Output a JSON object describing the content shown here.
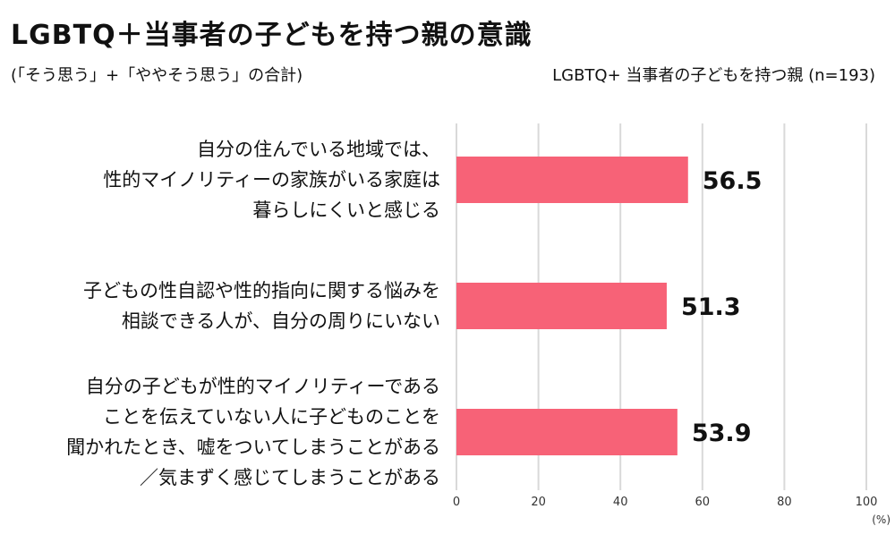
{
  "header": {
    "title": "LGBTQ＋当事者の子どもを持つ親の意識",
    "subtitle": "(「そう思う」+「ややそう思う」の合計)",
    "sample": "LGBTQ+ 当事者の子どもを持つ親 (n=193)"
  },
  "colors": {
    "bar": "#f76277",
    "grid": "#d9d9d9",
    "text": "#111111"
  },
  "chart_data": {
    "type": "bar",
    "orientation": "horizontal",
    "categories": [
      [
        "自分の住んでいる地域では、",
        "性的マイノリティーの家族がいる家庭は",
        "暮らしにくいと感じる"
      ],
      [
        "子どもの性自認や性的指向に関する悩みを",
        "相談できる人が、自分の周りにいない"
      ],
      [
        "自分の子どもが性的マイノリティーである",
        "ことを伝えていない人に子どものことを",
        "聞かれたとき、嘘をついてしまうことがある",
        "／気まずく感じてしまうことがある"
      ]
    ],
    "values": [
      56.5,
      51.3,
      53.9
    ],
    "value_labels": [
      "56.5",
      "51.3",
      "53.9"
    ],
    "xlim": [
      0,
      100
    ],
    "ticks": [
      0,
      20,
      40,
      60,
      80,
      100
    ],
    "unit": "(%)",
    "grid": true
  }
}
